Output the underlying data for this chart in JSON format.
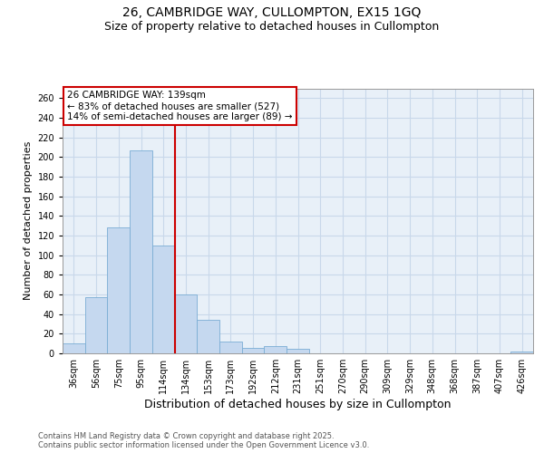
{
  "title_line1": "26, CAMBRIDGE WAY, CULLOMPTON, EX15 1GQ",
  "title_line2": "Size of property relative to detached houses in Cullompton",
  "xlabel": "Distribution of detached houses by size in Cullompton",
  "ylabel": "Number of detached properties",
  "categories": [
    "36sqm",
    "56sqm",
    "75sqm",
    "95sqm",
    "114sqm",
    "134sqm",
    "153sqm",
    "173sqm",
    "192sqm",
    "212sqm",
    "231sqm",
    "251sqm",
    "270sqm",
    "290sqm",
    "309sqm",
    "329sqm",
    "348sqm",
    "368sqm",
    "387sqm",
    "407sqm",
    "426sqm"
  ],
  "values": [
    10,
    57,
    128,
    207,
    110,
    60,
    34,
    12,
    6,
    7,
    5,
    0,
    0,
    0,
    0,
    0,
    0,
    0,
    0,
    0,
    2
  ],
  "bar_color": "#c5d8ef",
  "bar_edge_color": "#7aadd4",
  "grid_color": "#c8d8ea",
  "background_color": "#e8f0f8",
  "vline_x": 4.5,
  "vline_color": "#cc0000",
  "annotation_line1": "26 CAMBRIDGE WAY: 139sqm",
  "annotation_line2": "← 83% of detached houses are smaller (527)",
  "annotation_line3": "14% of semi-detached houses are larger (89) →",
  "annotation_box_color": "#cc0000",
  "ylim": [
    0,
    270
  ],
  "yticks": [
    0,
    20,
    40,
    60,
    80,
    100,
    120,
    140,
    160,
    180,
    200,
    220,
    240,
    260
  ],
  "footer_line1": "Contains HM Land Registry data © Crown copyright and database right 2025.",
  "footer_line2": "Contains public sector information licensed under the Open Government Licence v3.0.",
  "title_fontsize": 10,
  "subtitle_fontsize": 9,
  "ylabel_fontsize": 8,
  "xlabel_fontsize": 9,
  "tick_fontsize": 7,
  "annotation_fontsize": 7.5,
  "footer_fontsize": 6
}
